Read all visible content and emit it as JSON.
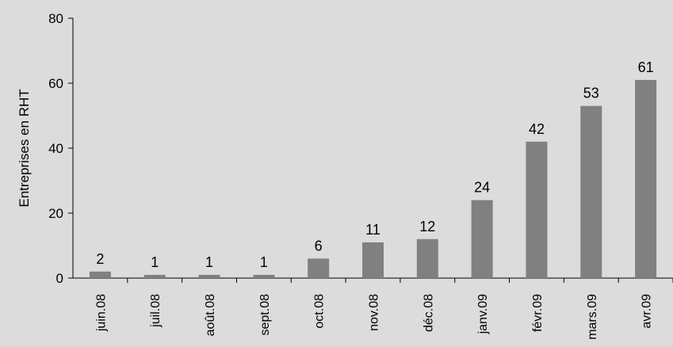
{
  "chart_data": {
    "type": "bar",
    "categories": [
      "juin.08",
      "juil.08",
      "août.08",
      "sept.08",
      "oct.08",
      "nov.08",
      "déc.08",
      "janv.09",
      "févr.09",
      "mars.09",
      "avr.09"
    ],
    "values": [
      2,
      1,
      1,
      1,
      6,
      11,
      12,
      24,
      42,
      53,
      61
    ],
    "title": "",
    "xlabel": "",
    "ylabel": "Entreprises en RHT",
    "ylim": [
      0,
      80
    ],
    "yticks": [
      0,
      20,
      40,
      60,
      80
    ],
    "grid": false,
    "legend": "none",
    "colors": {
      "bar": "#808080",
      "axis": "#000000",
      "background": "#dcdcdc"
    }
  }
}
